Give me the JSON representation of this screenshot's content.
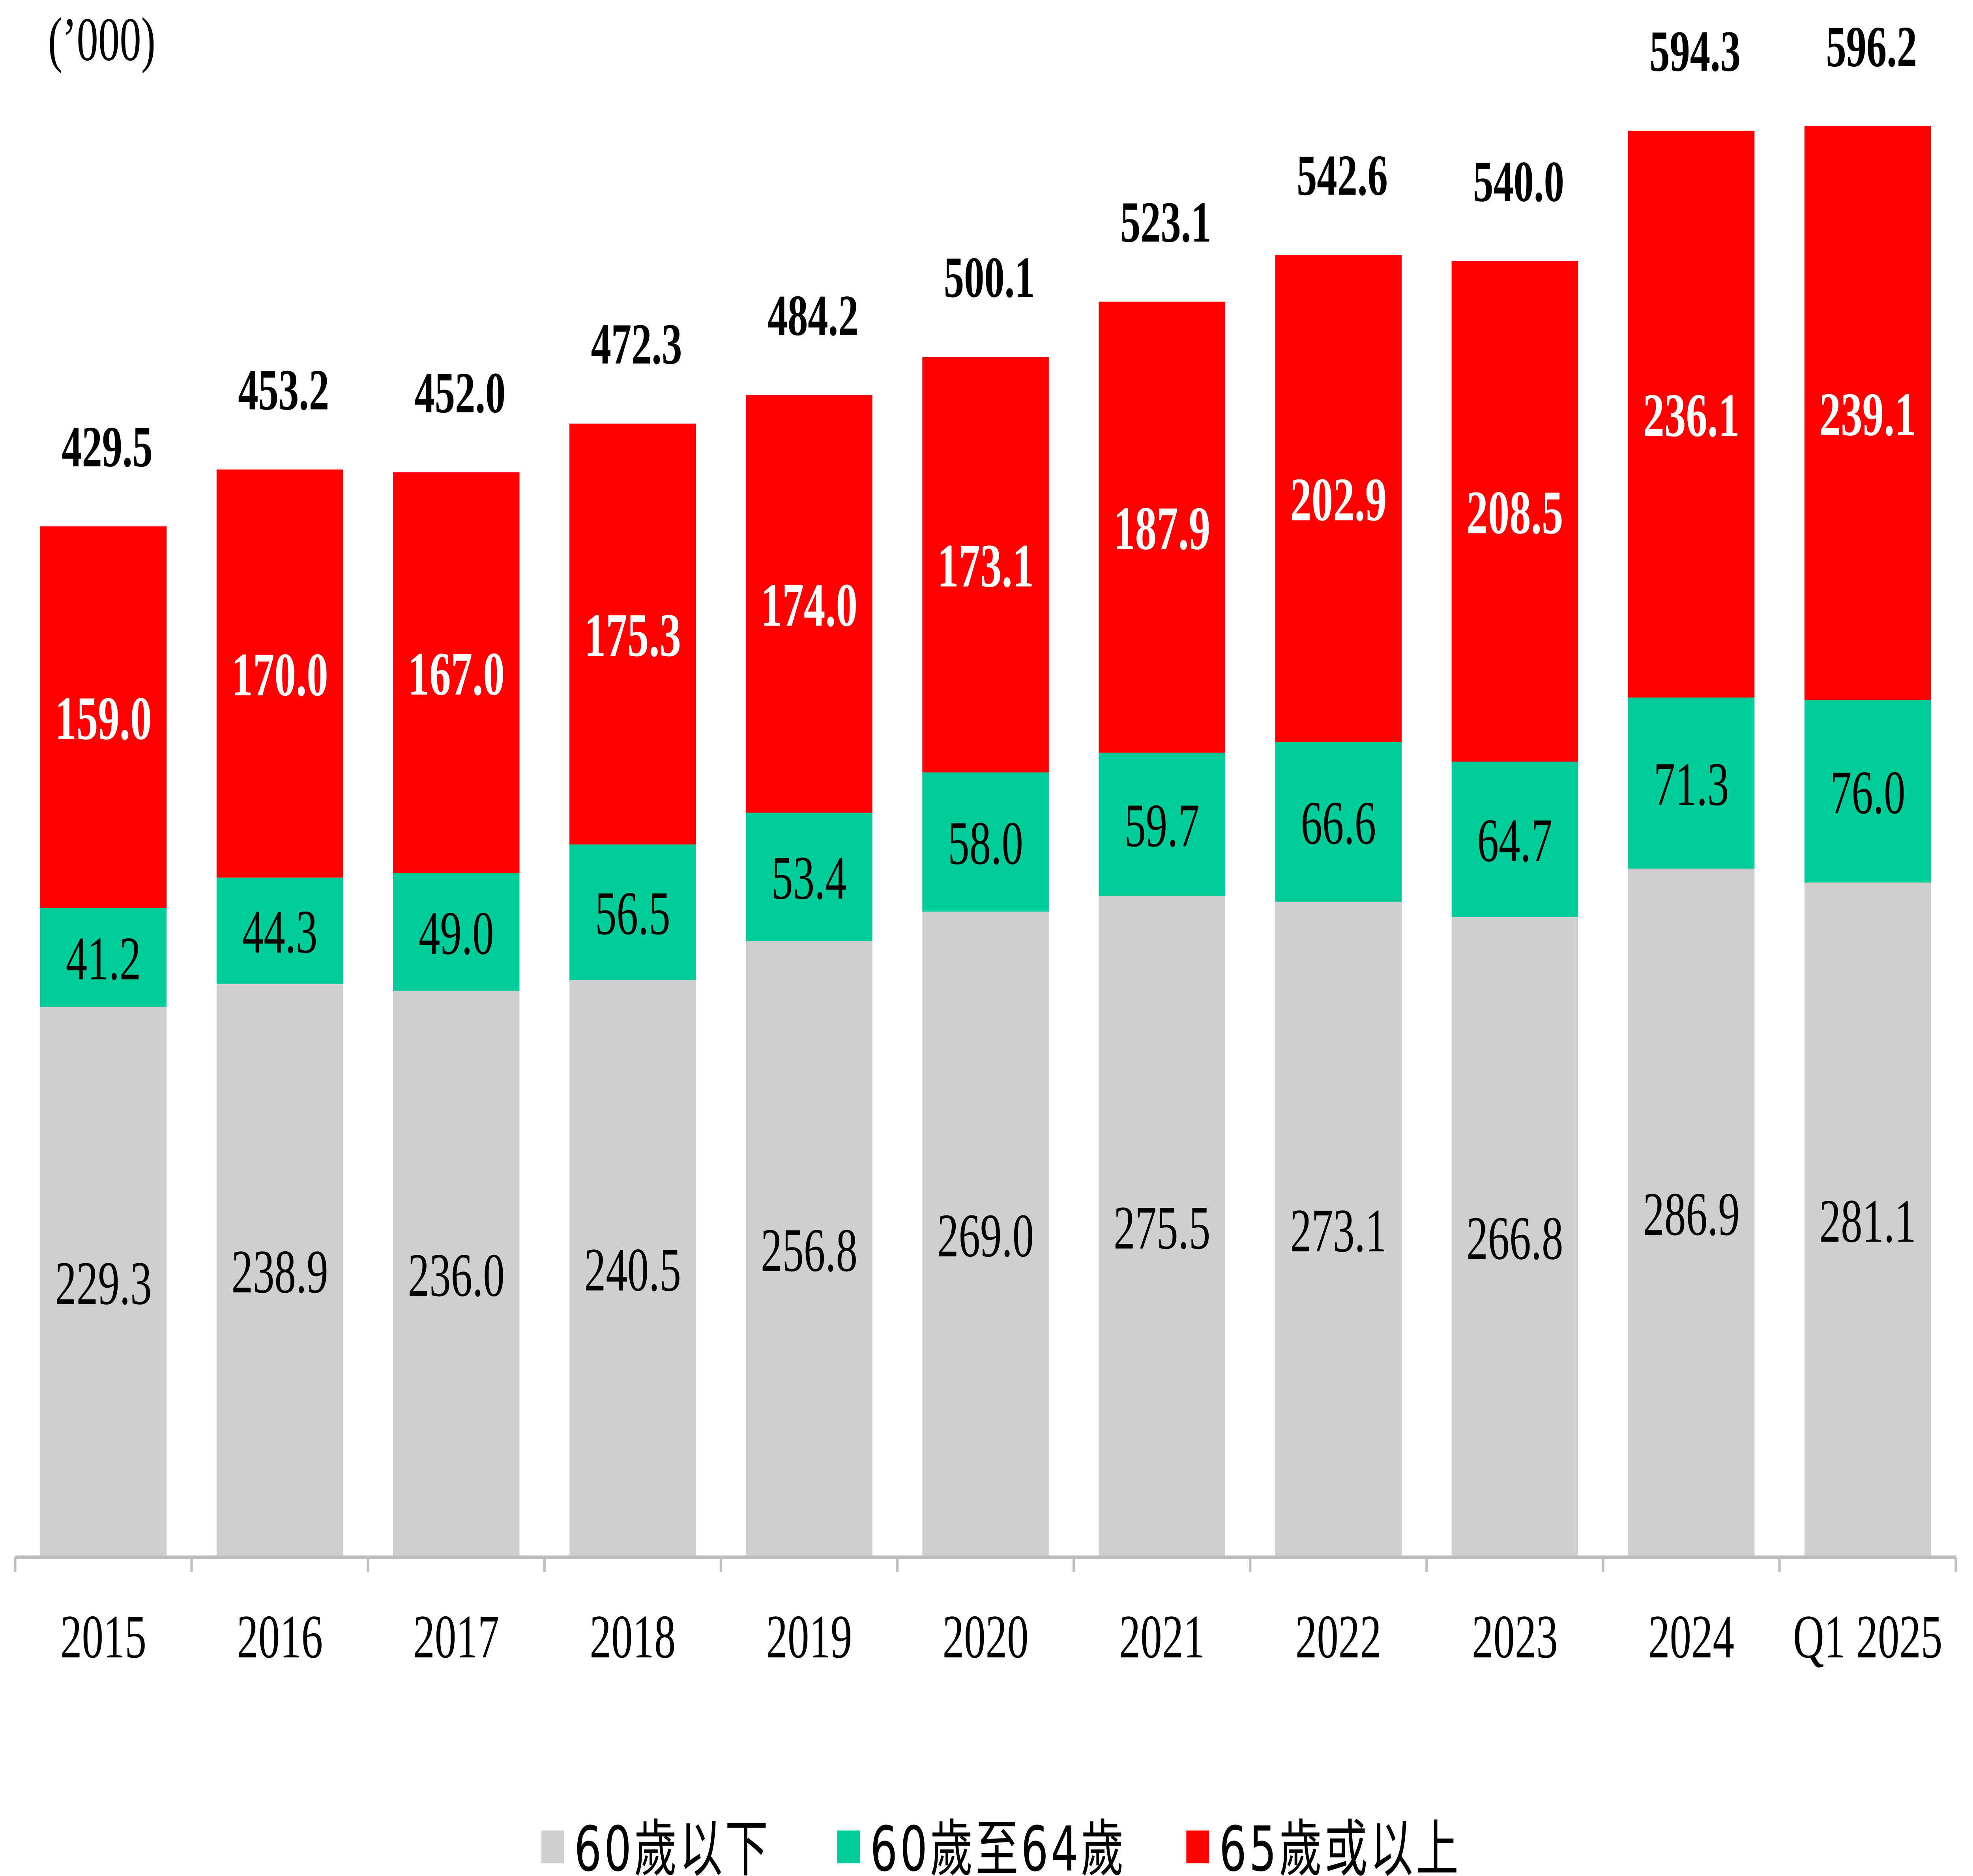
{
  "chart_data": {
    "type": "bar",
    "stacked": true,
    "unit_label": "(’000)",
    "categories": [
      "2015",
      "2016",
      "2017",
      "2018",
      "2019",
      "2020",
      "2021",
      "2022",
      "2023",
      "2024",
      "Q1 2025"
    ],
    "series": [
      {
        "name": "60歲以下",
        "color": "#d0cece",
        "values": [
          229.3,
          238.9,
          236.0,
          240.5,
          256.8,
          269.0,
          275.5,
          273.1,
          266.8,
          286.9,
          281.1
        ]
      },
      {
        "name": "60歲至64歲",
        "color": "#00cc99",
        "values": [
          41.2,
          44.3,
          49.0,
          56.5,
          53.4,
          58.0,
          59.7,
          66.6,
          64.7,
          71.3,
          76.0
        ]
      },
      {
        "name": "65歲或以上",
        "color": "#ff0000",
        "values": [
          159.0,
          170.0,
          167.0,
          175.3,
          174.0,
          173.1,
          187.9,
          202.9,
          208.5,
          236.1,
          239.1
        ]
      }
    ],
    "totals": [
      429.5,
      453.2,
      452.0,
      472.3,
      484.2,
      500.1,
      523.1,
      542.6,
      540.0,
      594.3,
      596.2
    ],
    "ylim": [
      0,
      650
    ],
    "grid": false,
    "legend_position": "bottom",
    "xlabel": "",
    "ylabel": ""
  }
}
